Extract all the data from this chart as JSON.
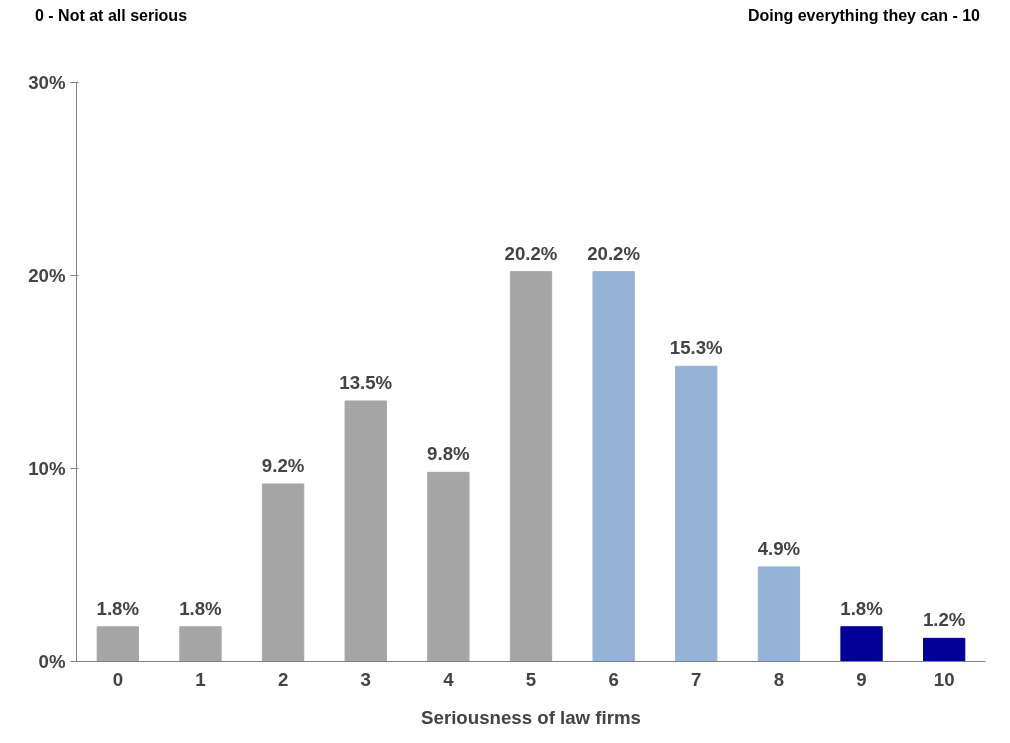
{
  "chart_data": {
    "type": "bar",
    "categories": [
      "0",
      "1",
      "2",
      "3",
      "4",
      "5",
      "6",
      "7",
      "8",
      "9",
      "10"
    ],
    "values": [
      1.8,
      1.8,
      9.2,
      13.5,
      9.8,
      20.2,
      20.2,
      15.3,
      4.9,
      1.8,
      1.2
    ],
    "colors": [
      "#a6a6a6",
      "#a6a6a6",
      "#a6a6a6",
      "#a6a6a6",
      "#a6a6a6",
      "#a6a6a6",
      "#95b3d7",
      "#95b3d7",
      "#95b3d7",
      "#000099",
      "#000099"
    ],
    "value_labels": [
      "1.8%",
      "1.8%",
      "9.2%",
      "13.5%",
      "9.8%",
      "20.2%",
      "20.2%",
      "15.3%",
      "4.9%",
      "1.8%",
      "1.2%"
    ],
    "xlabel": "Seriousness of law firms",
    "ylim": [
      0,
      30
    ],
    "yticks": [
      {
        "value": 0,
        "label": "0%"
      },
      {
        "value": 10,
        "label": "10%"
      },
      {
        "value": 20,
        "label": "20%"
      },
      {
        "value": 30,
        "label": "30%"
      }
    ],
    "annotations": [
      "0 - Not at all serious",
      "Doing everything they can - 10"
    ],
    "grid": false
  }
}
